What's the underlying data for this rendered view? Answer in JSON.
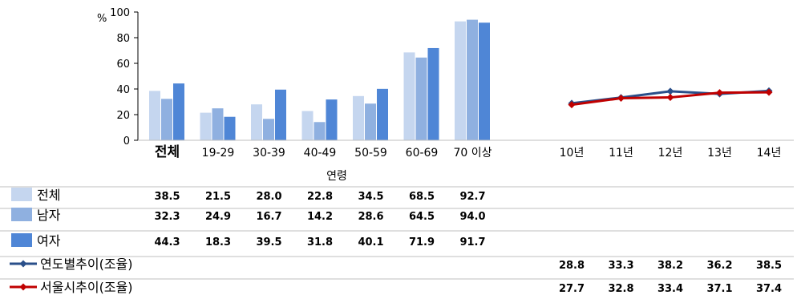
{
  "chart_data": [
    {
      "type": "bar",
      "ylabel": "%",
      "ylim": [
        0,
        100
      ],
      "yticks": [
        "0",
        "20",
        "40",
        "60",
        "80",
        "100"
      ],
      "xlabel": "연령",
      "categories": [
        "전체",
        "19-29",
        "30-39",
        "40-49",
        "50-59",
        "60-69",
        "70 이상"
      ],
      "series": [
        {
          "name": "전체",
          "color": "#c5d6ef",
          "values": [
            38.5,
            21.5,
            28.0,
            22.8,
            34.5,
            68.5,
            92.7
          ],
          "labels": [
            "38.5",
            "21.5",
            "28.0",
            "22.8",
            "34.5",
            "68.5",
            "92.7"
          ]
        },
        {
          "name": "남자",
          "color": "#8fb0e0",
          "values": [
            32.3,
            24.9,
            16.7,
            14.2,
            28.6,
            64.5,
            94.0
          ],
          "labels": [
            "32.3",
            "24.9",
            "16.7",
            "14.2",
            "28.6",
            "64.5",
            "94.0"
          ]
        },
        {
          "name": "여자",
          "color": "#4f86d6",
          "values": [
            44.3,
            18.3,
            39.5,
            31.8,
            40.1,
            71.9,
            91.7
          ],
          "labels": [
            "44.3",
            "18.3",
            "39.5",
            "31.8",
            "40.1",
            "71.9",
            "91.7"
          ]
        }
      ]
    },
    {
      "type": "line",
      "ylim": [
        0,
        100
      ],
      "categories": [
        "10년",
        "11년",
        "12년",
        "13년",
        "14년"
      ],
      "series": [
        {
          "name": "연도별추이(조율)",
          "color": "#2a4f8a",
          "values": [
            28.8,
            33.3,
            38.2,
            36.2,
            38.5
          ],
          "labels": [
            "28.8",
            "33.3",
            "38.2",
            "36.2",
            "38.5"
          ]
        },
        {
          "name": "서울시추이(조율)",
          "color": "#c00000",
          "values": [
            27.7,
            32.8,
            33.4,
            37.1,
            37.4
          ],
          "labels": [
            "27.7",
            "32.8",
            "33.4",
            "37.1",
            "37.4"
          ]
        }
      ]
    }
  ]
}
